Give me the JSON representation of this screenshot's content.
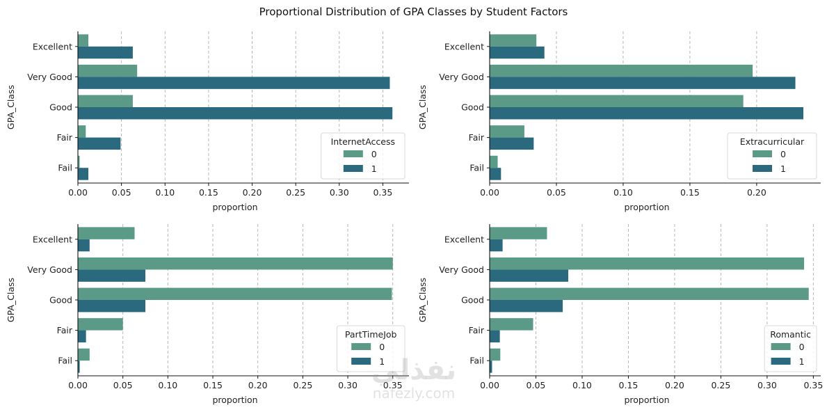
{
  "figure": {
    "title": "Proportional Distribution of GPA Classes by Student Factors",
    "colors": {
      "hue_0": "#5a9a87",
      "hue_1": "#2b697e",
      "grid": "#b0b0b0",
      "axis": "#111111"
    }
  },
  "watermark": {
    "arabic": "نفذلي",
    "text": "nafezly.com"
  },
  "chart_data": [
    {
      "type": "bar",
      "orientation": "horizontal",
      "title": "",
      "xlabel": "proportion",
      "ylabel": "GPA_Class",
      "categories": [
        "Excellent",
        "Very Good",
        "Good",
        "Fair",
        "Fail"
      ],
      "xlim": [
        0,
        0.38
      ],
      "xticks": [
        "0.00",
        "0.05",
        "0.10",
        "0.15",
        "0.20",
        "0.25",
        "0.30",
        "0.35"
      ],
      "grid": "x-dashed",
      "legend": {
        "title": "InternetAccess",
        "placement": "lower-right",
        "entries": [
          "0",
          "1"
        ]
      },
      "series": [
        {
          "name": "0",
          "values": [
            0.012,
            0.068,
            0.063,
            0.009,
            0.002
          ]
        },
        {
          "name": "1",
          "values": [
            0.063,
            0.358,
            0.361,
            0.049,
            0.012
          ]
        }
      ]
    },
    {
      "type": "bar",
      "orientation": "horizontal",
      "title": "",
      "xlabel": "proportion",
      "ylabel": "GPA_Class",
      "categories": [
        "Excellent",
        "Very Good",
        "Good",
        "Fair",
        "Fail"
      ],
      "xlim": [
        0,
        0.248
      ],
      "xticks": [
        "0.00",
        "0.05",
        "0.10",
        "0.15",
        "0.20"
      ],
      "grid": "x-dashed",
      "legend": {
        "title": "Extracurricular",
        "placement": "lower-right",
        "entries": [
          "0",
          "1"
        ]
      },
      "series": [
        {
          "name": "0",
          "values": [
            0.035,
            0.197,
            0.19,
            0.026,
            0.006
          ]
        },
        {
          "name": "1",
          "values": [
            0.041,
            0.229,
            0.235,
            0.033,
            0.0085
          ]
        }
      ]
    },
    {
      "type": "bar",
      "orientation": "horizontal",
      "title": "",
      "xlabel": "proportion",
      "ylabel": "GPA_Class",
      "categories": [
        "Excellent",
        "Very Good",
        "Good",
        "Fair",
        "Fail"
      ],
      "xlim": [
        0,
        0.368
      ],
      "xticks": [
        "0.00",
        "0.05",
        "0.10",
        "0.15",
        "0.20",
        "0.25",
        "0.30",
        "0.35"
      ],
      "grid": "x-dashed",
      "legend": {
        "title": "PartTimeJob",
        "placement": "lower-right",
        "entries": [
          "0",
          "1"
        ]
      },
      "series": [
        {
          "name": "0",
          "values": [
            0.063,
            0.35,
            0.349,
            0.05,
            0.013
          ]
        },
        {
          "name": "1",
          "values": [
            0.013,
            0.075,
            0.075,
            0.009,
            0.002
          ]
        }
      ]
    },
    {
      "type": "bar",
      "orientation": "horizontal",
      "title": "",
      "xlabel": "proportion",
      "ylabel": "GPA_Class",
      "categories": [
        "Excellent",
        "Very Good",
        "Good",
        "Fair",
        "Fail"
      ],
      "xlim": [
        0,
        0.358
      ],
      "xticks": [
        "0.00",
        "0.05",
        "0.10",
        "0.15",
        "0.20",
        "0.25",
        "0.30",
        "0.35"
      ],
      "grid": "x-dashed",
      "legend": {
        "title": "Romantic",
        "placement": "lower-right",
        "entries": [
          "0",
          "1"
        ]
      },
      "series": [
        {
          "name": "0",
          "values": [
            0.062,
            0.34,
            0.345,
            0.047,
            0.0115
          ]
        },
        {
          "name": "1",
          "values": [
            0.014,
            0.085,
            0.079,
            0.011,
            0.0026
          ]
        }
      ]
    }
  ]
}
